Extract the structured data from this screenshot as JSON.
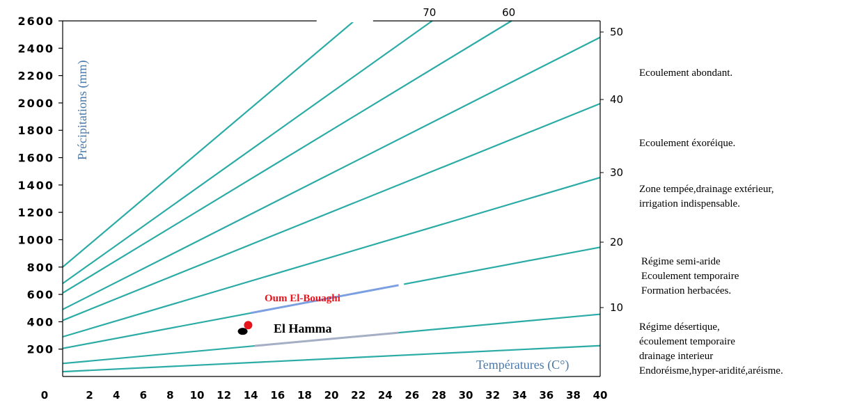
{
  "chart_data": {
    "type": "line",
    "ylabel": "Précipitations (mm)",
    "xlabel": "Températures (C°)",
    "xlim": [
      0,
      40
    ],
    "ylim": [
      0,
      2600
    ],
    "x_ticks": [
      0,
      2,
      4,
      6,
      8,
      10,
      12,
      14,
      16,
      18,
      20,
      22,
      24,
      26,
      28,
      30,
      32,
      34,
      36,
      38,
      40
    ],
    "y_ticks": [
      200,
      400,
      600,
      800,
      1000,
      1200,
      1400,
      1600,
      1800,
      2000,
      2200,
      2400,
      2600
    ],
    "right_axis_ticks": [
      10,
      20,
      30,
      40,
      50
    ],
    "top_labels": [
      {
        "text": "70",
        "x": 27.5
      },
      {
        "text": "60",
        "x": 33.4
      }
    ],
    "series": [
      {
        "x": [
          0,
          40
        ],
        "y": [
          35,
          225
        ]
      },
      {
        "x": [
          0,
          40
        ],
        "y": [
          95,
          455
        ]
      },
      {
        "x": [
          0,
          40
        ],
        "y": [
          205,
          945
        ]
      },
      {
        "x": [
          0,
          40
        ],
        "y": [
          290,
          1455
        ]
      },
      {
        "x": [
          0,
          40
        ],
        "y": [
          410,
          1995
        ]
      },
      {
        "x": [
          0,
          40
        ],
        "y": [
          490,
          2480
        ]
      },
      {
        "x": [
          0,
          33.4
        ],
        "y": [
          610,
          2600
        ]
      },
      {
        "x": [
          0,
          27.5
        ],
        "y": [
          680,
          2600
        ]
      },
      {
        "x": [
          0,
          21.7
        ],
        "y": [
          800,
          2600
        ]
      }
    ],
    "stations": [
      {
        "name": "Oum El-Bouaghi",
        "x": 13.7,
        "y": 365,
        "color": "#e8141c"
      },
      {
        "name": "El Hamma",
        "x": 13.5,
        "y": 340,
        "color": "#000000"
      }
    ],
    "zones": [
      {
        "text": "Ecoulement abondant."
      },
      {
        "text": "Ecoulement éxoréique."
      },
      {
        "text": "Zone tempée,drainage extérieur,\nirrigation indispensable."
      },
      {
        "text": "Régime semi-aride\nEcoulement temporaire\nFormation herbacées."
      },
      {
        "text": "Régime désertique,\nécoulement temporaire\ndrainage interieur\nEndoréisme,hyper-aridité,aréisme."
      }
    ],
    "colors": {
      "isolines": "#2aaba5",
      "highlight_upper": "#7b9fe0",
      "highlight_lower": "#a4aec4",
      "axis_title": "#4a78a8"
    }
  }
}
